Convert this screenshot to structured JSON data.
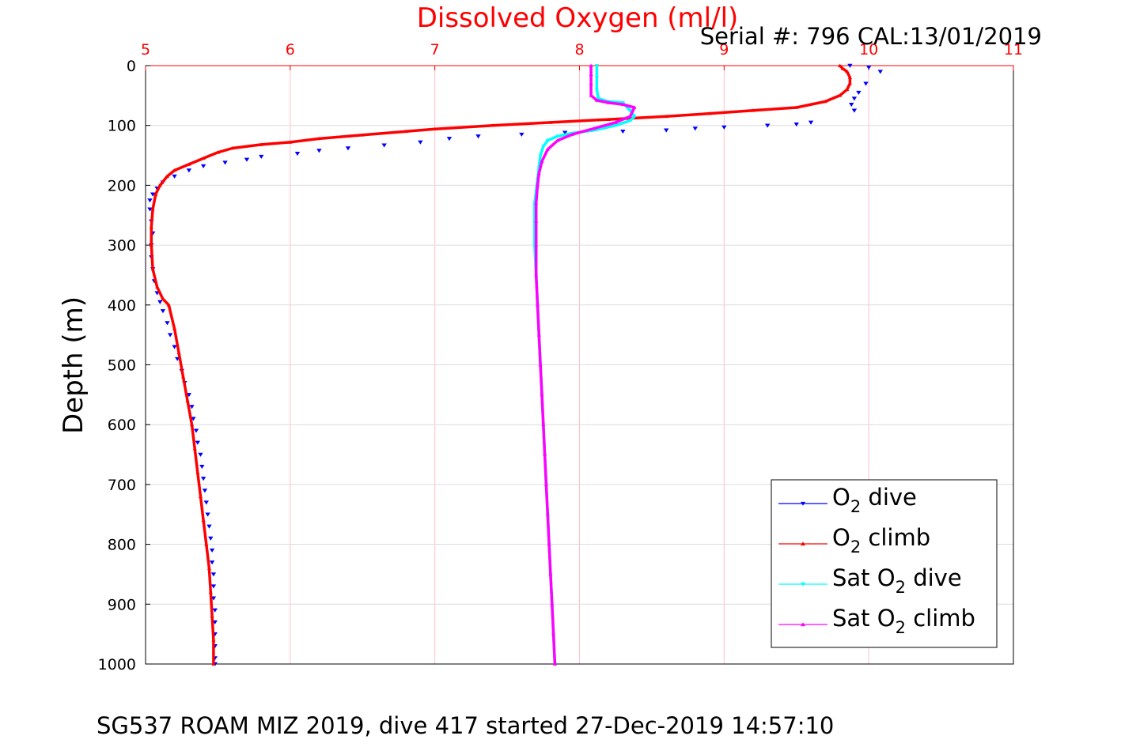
{
  "chart_data": {
    "type": "scatter",
    "title": "Dissolved Oxygen (ml/l)",
    "subtitle": "Serial #: 796  CAL:13/01/2019",
    "caption": "SG537 ROAM MIZ 2019, dive 417 started 27-Dec-2019 14:57:10",
    "ylabel": "Depth (m)",
    "xlabel": "",
    "xlim": [
      5,
      11
    ],
    "ylim": [
      0,
      1000
    ],
    "y_reversed": true,
    "x_axis_position": "top",
    "x_ticks": [
      "5",
      "6",
      "7",
      "8",
      "9",
      "10",
      "11"
    ],
    "y_ticks": [
      "0",
      "100",
      "200",
      "300",
      "400",
      "500",
      "600",
      "700",
      "800",
      "900",
      "1000"
    ],
    "grid": true,
    "legend": {
      "placement": "bottom-right"
    },
    "colors": {
      "title": "#ff0000",
      "x_ticks": "#ff0000",
      "grid": "#ffc0cb",
      "grid_y": "#dcdcdc"
    },
    "series": [
      {
        "name": "O2 dive",
        "legend_main": "O",
        "legend_sub": "2",
        "legend_post": " dive",
        "color": "#0000ff",
        "marker": "down-triangle",
        "style": "markers",
        "points": [
          [
            9.87,
            0
          ],
          [
            10.0,
            3
          ],
          [
            10.08,
            10
          ],
          [
            9.98,
            30
          ],
          [
            9.93,
            45
          ],
          [
            9.9,
            55
          ],
          [
            9.88,
            65
          ],
          [
            9.9,
            75
          ],
          [
            9.6,
            95
          ],
          [
            9.5,
            98
          ],
          [
            9.3,
            100
          ],
          [
            9.0,
            103
          ],
          [
            8.8,
            105
          ],
          [
            8.6,
            108
          ],
          [
            8.3,
            110
          ],
          [
            7.9,
            112
          ],
          [
            7.6,
            115
          ],
          [
            7.3,
            118
          ],
          [
            7.1,
            122
          ],
          [
            6.9,
            128
          ],
          [
            6.65,
            133
          ],
          [
            6.4,
            138
          ],
          [
            6.2,
            142
          ],
          [
            6.05,
            147
          ],
          [
            5.8,
            152
          ],
          [
            5.7,
            157
          ],
          [
            5.55,
            162
          ],
          [
            5.4,
            168
          ],
          [
            5.3,
            175
          ],
          [
            5.2,
            185
          ],
          [
            5.12,
            195
          ],
          [
            5.08,
            205
          ],
          [
            5.05,
            215
          ],
          [
            5.03,
            225
          ],
          [
            5.03,
            240
          ],
          [
            5.04,
            260
          ],
          [
            5.05,
            280
          ],
          [
            5.04,
            300
          ],
          [
            5.04,
            320
          ],
          [
            5.05,
            340
          ],
          [
            5.06,
            360
          ],
          [
            5.08,
            380
          ],
          [
            5.1,
            395
          ],
          [
            5.12,
            410
          ],
          [
            5.15,
            430
          ],
          [
            5.17,
            450
          ],
          [
            5.2,
            470
          ],
          [
            5.22,
            490
          ],
          [
            5.25,
            510
          ],
          [
            5.27,
            530
          ],
          [
            5.3,
            550
          ],
          [
            5.32,
            570
          ],
          [
            5.33,
            590
          ],
          [
            5.35,
            610
          ],
          [
            5.36,
            630
          ],
          [
            5.38,
            650
          ],
          [
            5.39,
            670
          ],
          [
            5.4,
            690
          ],
          [
            5.41,
            710
          ],
          [
            5.42,
            730
          ],
          [
            5.43,
            750
          ],
          [
            5.44,
            770
          ],
          [
            5.45,
            790
          ],
          [
            5.46,
            810
          ],
          [
            5.46,
            830
          ],
          [
            5.47,
            850
          ],
          [
            5.47,
            870
          ],
          [
            5.47,
            890
          ],
          [
            5.48,
            910
          ],
          [
            5.48,
            930
          ],
          [
            5.48,
            950
          ],
          [
            5.48,
            970
          ],
          [
            5.48,
            990
          ],
          [
            5.48,
            1000
          ]
        ]
      },
      {
        "name": "O2 climb",
        "legend_main": "O",
        "legend_sub": "2",
        "legend_post": " climb",
        "color": "#ff0000",
        "marker": "up-triangle",
        "style": "line",
        "points": [
          [
            5.47,
            1000
          ],
          [
            5.47,
            960
          ],
          [
            5.46,
            920
          ],
          [
            5.45,
            880
          ],
          [
            5.44,
            840
          ],
          [
            5.42,
            800
          ],
          [
            5.4,
            760
          ],
          [
            5.38,
            720
          ],
          [
            5.36,
            680
          ],
          [
            5.34,
            640
          ],
          [
            5.32,
            600
          ],
          [
            5.29,
            560
          ],
          [
            5.26,
            520
          ],
          [
            5.23,
            480
          ],
          [
            5.2,
            440
          ],
          [
            5.16,
            400
          ],
          [
            5.12,
            390
          ],
          [
            5.08,
            370
          ],
          [
            5.05,
            340
          ],
          [
            5.04,
            300
          ],
          [
            5.04,
            270
          ],
          [
            5.05,
            240
          ],
          [
            5.07,
            215
          ],
          [
            5.1,
            200
          ],
          [
            5.15,
            185
          ],
          [
            5.2,
            175
          ],
          [
            5.3,
            165
          ],
          [
            5.4,
            155
          ],
          [
            5.5,
            145
          ],
          [
            5.6,
            138
          ],
          [
            5.8,
            132
          ],
          [
            6.0,
            128
          ],
          [
            6.2,
            122
          ],
          [
            6.5,
            116
          ],
          [
            6.8,
            110
          ],
          [
            7.0,
            106
          ],
          [
            7.4,
            100
          ],
          [
            7.8,
            95
          ],
          [
            8.2,
            90
          ],
          [
            8.6,
            85
          ],
          [
            8.9,
            80
          ],
          [
            9.2,
            75
          ],
          [
            9.5,
            70
          ],
          [
            9.7,
            60
          ],
          [
            9.8,
            50
          ],
          [
            9.85,
            40
          ],
          [
            9.87,
            30
          ],
          [
            9.87,
            20
          ],
          [
            9.85,
            10
          ],
          [
            9.82,
            5
          ],
          [
            9.8,
            0
          ]
        ]
      },
      {
        "name": "Sat O2 dive",
        "legend_main": "Sat O",
        "legend_sub": "2",
        "legend_post": " dive",
        "color": "#00ffff",
        "marker": "down-triangle",
        "style": "line",
        "points": [
          [
            8.12,
            0
          ],
          [
            8.12,
            20
          ],
          [
            8.12,
            40
          ],
          [
            8.13,
            55
          ],
          [
            8.2,
            60
          ],
          [
            8.3,
            62
          ],
          [
            8.35,
            75
          ],
          [
            8.38,
            85
          ],
          [
            8.35,
            92
          ],
          [
            8.25,
            100
          ],
          [
            8.1,
            108
          ],
          [
            7.95,
            113
          ],
          [
            7.85,
            118
          ],
          [
            7.78,
            125
          ],
          [
            7.75,
            135
          ],
          [
            7.73,
            150
          ],
          [
            7.72,
            170
          ],
          [
            7.71,
            190
          ],
          [
            7.7,
            210
          ],
          [
            7.69,
            230
          ],
          [
            7.69,
            260
          ],
          [
            7.69,
            300
          ],
          [
            7.7,
            350
          ],
          [
            7.71,
            400
          ],
          [
            7.72,
            450
          ],
          [
            7.73,
            500
          ],
          [
            7.74,
            550
          ],
          [
            7.75,
            600
          ],
          [
            7.76,
            650
          ],
          [
            7.77,
            700
          ],
          [
            7.78,
            750
          ],
          [
            7.79,
            800
          ],
          [
            7.8,
            850
          ],
          [
            7.81,
            900
          ],
          [
            7.82,
            950
          ],
          [
            7.83,
            1000
          ]
        ]
      },
      {
        "name": "Sat O2 climb",
        "legend_main": "Sat O",
        "legend_sub": "2",
        "legend_post": " climb",
        "color": "#ff00ff",
        "marker": "up-triangle",
        "style": "line",
        "points": [
          [
            7.83,
            1000
          ],
          [
            7.82,
            950
          ],
          [
            7.81,
            900
          ],
          [
            7.8,
            850
          ],
          [
            7.79,
            800
          ],
          [
            7.78,
            750
          ],
          [
            7.77,
            700
          ],
          [
            7.76,
            650
          ],
          [
            7.75,
            600
          ],
          [
            7.74,
            550
          ],
          [
            7.73,
            500
          ],
          [
            7.72,
            450
          ],
          [
            7.71,
            400
          ],
          [
            7.7,
            350
          ],
          [
            7.7,
            300
          ],
          [
            7.7,
            260
          ],
          [
            7.7,
            230
          ],
          [
            7.71,
            200
          ],
          [
            7.72,
            180
          ],
          [
            7.74,
            160
          ],
          [
            7.78,
            140
          ],
          [
            7.85,
            125
          ],
          [
            7.95,
            115
          ],
          [
            8.1,
            105
          ],
          [
            8.25,
            95
          ],
          [
            8.35,
            85
          ],
          [
            8.38,
            70
          ],
          [
            8.3,
            65
          ],
          [
            8.2,
            62
          ],
          [
            8.12,
            58
          ],
          [
            8.08,
            50
          ],
          [
            8.08,
            30
          ],
          [
            8.08,
            15
          ],
          [
            8.08,
            0
          ]
        ]
      }
    ]
  }
}
